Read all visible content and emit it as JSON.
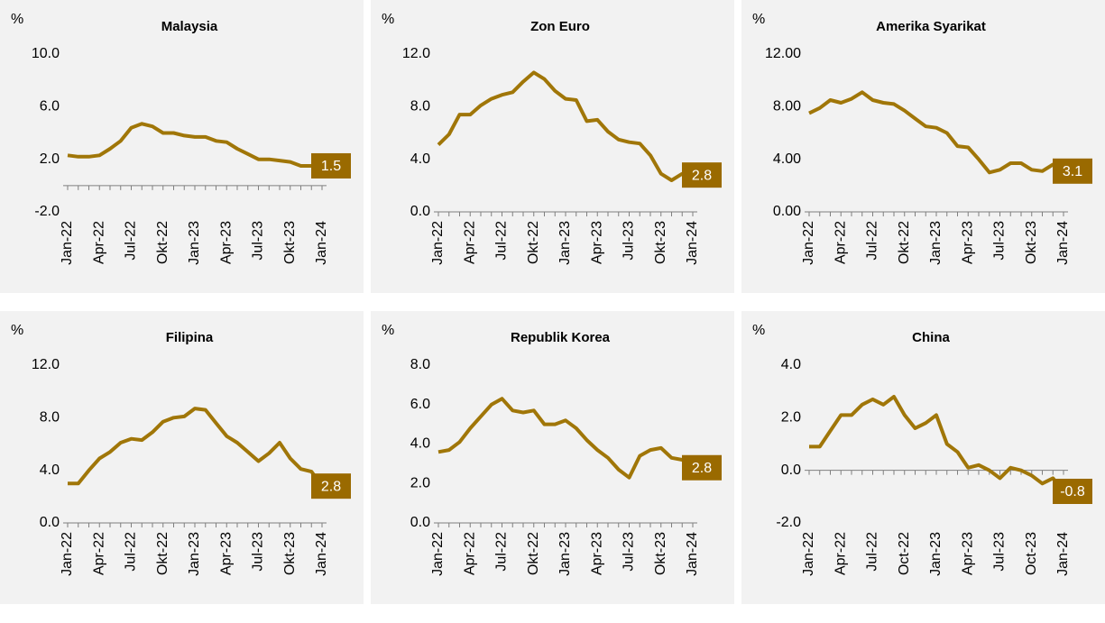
{
  "chart_data": [
    {
      "type": "line",
      "title": "Malaysia",
      "y_label": "%",
      "color": "#a07608",
      "label_color": "#9a6a00",
      "categories": [
        "Jan-22",
        null,
        null,
        "Apr-22",
        null,
        null,
        "Jul-22",
        null,
        null,
        "Okt-22",
        null,
        null,
        "Jan-23",
        null,
        null,
        "Apr-23",
        null,
        null,
        "Jul-23",
        null,
        null,
        "Okt-23",
        null,
        null,
        "Jan-24"
      ],
      "values": [
        2.3,
        2.2,
        2.2,
        2.3,
        2.8,
        3.4,
        4.4,
        4.7,
        4.5,
        4.0,
        4.0,
        3.8,
        3.7,
        3.7,
        3.4,
        3.3,
        2.8,
        2.4,
        2.0,
        2.0,
        1.9,
        1.8,
        1.5,
        1.5,
        1.5
      ],
      "ylim": [
        -2,
        10
      ],
      "yticks": [
        {
          "value": -2,
          "label": "-2.0"
        },
        {
          "value": 2,
          "label": "2.0"
        },
        {
          "value": 6,
          "label": "6.0"
        },
        {
          "value": 10,
          "label": "10.0"
        }
      ]
    },
    {
      "type": "line",
      "title": "Zon Euro",
      "y_label": "%",
      "color": "#a07608",
      "label_color": "#9a6a00",
      "categories": [
        "Jan-22",
        null,
        null,
        "Apr-22",
        null,
        null,
        "Jul-22",
        null,
        null,
        "Okt-22",
        null,
        null,
        "Jan-23",
        null,
        null,
        "Apr-23",
        null,
        null,
        "Jul-23",
        null,
        null,
        "Okt-23",
        null,
        null,
        "Jan-24"
      ],
      "values": [
        5.1,
        5.9,
        7.4,
        7.4,
        8.1,
        8.6,
        8.9,
        9.1,
        9.9,
        10.6,
        10.1,
        9.2,
        8.6,
        8.5,
        6.9,
        7.0,
        6.1,
        5.5,
        5.3,
        5.2,
        4.3,
        2.9,
        2.4,
        2.9,
        2.8
      ],
      "ylim": [
        0,
        12
      ],
      "yticks": [
        {
          "value": 0,
          "label": "0.0"
        },
        {
          "value": 4,
          "label": "4.0"
        },
        {
          "value": 8,
          "label": "8.0"
        },
        {
          "value": 12,
          "label": "12.0"
        }
      ]
    },
    {
      "type": "line",
      "title": "Amerika Syarikat",
      "y_label": "%",
      "color": "#a07608",
      "label_color": "#9a6a00",
      "categories": [
        "Jan-22",
        null,
        null,
        "Apr-22",
        null,
        null,
        "Jul-22",
        null,
        null,
        "Okt-22",
        null,
        null,
        "Jan-23",
        null,
        null,
        "Apr-23",
        null,
        null,
        "Jul-23",
        null,
        null,
        "Okt-23",
        null,
        null,
        "Jan-24"
      ],
      "values": [
        7.5,
        7.9,
        8.5,
        8.3,
        8.6,
        9.1,
        8.5,
        8.3,
        8.2,
        7.7,
        7.1,
        6.5,
        6.4,
        6.0,
        5.0,
        4.9,
        4.0,
        3.0,
        3.2,
        3.7,
        3.7,
        3.2,
        3.1,
        3.6,
        3.1
      ],
      "ylim": [
        0,
        12
      ],
      "yticks": [
        {
          "value": 0,
          "label": "0.00"
        },
        {
          "value": 4,
          "label": "4.00"
        },
        {
          "value": 8,
          "label": "8.00"
        },
        {
          "value": 12,
          "label": "12.00"
        }
      ]
    },
    {
      "type": "line",
      "title": "Filipina",
      "y_label": "%",
      "color": "#a07608",
      "label_color": "#9a6a00",
      "categories": [
        "Jan-22",
        null,
        null,
        "Apr-22",
        null,
        null,
        "Jul-22",
        null,
        null,
        "Okt-22",
        null,
        null,
        "Jan-23",
        null,
        null,
        "Apr-23",
        null,
        null,
        "Jul-23",
        null,
        null,
        "Okt-23",
        null,
        null,
        "Jan-24"
      ],
      "values": [
        3.0,
        3.0,
        4.0,
        4.9,
        5.4,
        6.1,
        6.4,
        6.3,
        6.9,
        7.7,
        8.0,
        8.1,
        8.7,
        8.6,
        7.6,
        6.6,
        6.1,
        5.4,
        4.7,
        5.3,
        6.1,
        4.9,
        4.1,
        3.9,
        2.8
      ],
      "ylim": [
        0,
        12
      ],
      "yticks": [
        {
          "value": 0,
          "label": "0.0"
        },
        {
          "value": 4,
          "label": "4.0"
        },
        {
          "value": 8,
          "label": "8.0"
        },
        {
          "value": 12,
          "label": "12.0"
        }
      ]
    },
    {
      "type": "line",
      "title": "Republik Korea",
      "y_label": "%",
      "color": "#a07608",
      "label_color": "#9a6a00",
      "categories": [
        "Jan-22",
        null,
        null,
        "Apr-22",
        null,
        null,
        "Jul-22",
        null,
        null,
        "Okt-22",
        null,
        null,
        "Jan-23",
        null,
        null,
        "Apr-23",
        null,
        null,
        "Jul-23",
        null,
        null,
        "Okt-23",
        null,
        null,
        "Jan-24"
      ],
      "values": [
        3.6,
        3.7,
        4.1,
        4.8,
        5.4,
        6.0,
        6.3,
        5.7,
        5.6,
        5.7,
        5.0,
        5.0,
        5.2,
        4.8,
        4.2,
        3.7,
        3.3,
        2.7,
        2.3,
        3.4,
        3.7,
        3.8,
        3.3,
        3.2,
        2.8
      ],
      "ylim": [
        0,
        8
      ],
      "yticks": [
        {
          "value": 0,
          "label": "0.0"
        },
        {
          "value": 2,
          "label": "2.0"
        },
        {
          "value": 4,
          "label": "4.0"
        },
        {
          "value": 6,
          "label": "6.0"
        },
        {
          "value": 8,
          "label": "8.0"
        }
      ]
    },
    {
      "type": "line",
      "title": "China",
      "y_label": "%",
      "color": "#a07608",
      "label_color": "#9a6a00",
      "categories": [
        "Jan-22",
        null,
        null,
        "Apr-22",
        null,
        null,
        "Jul-22",
        null,
        null,
        "Oct-22",
        null,
        null,
        "Jan-23",
        null,
        null,
        "Apr-23",
        null,
        null,
        "Jul-23",
        null,
        null,
        "Oct-23",
        null,
        null,
        "Jan-24"
      ],
      "values": [
        0.9,
        0.9,
        1.5,
        2.1,
        2.1,
        2.5,
        2.7,
        2.5,
        2.8,
        2.1,
        1.6,
        1.8,
        2.1,
        1.0,
        0.7,
        0.1,
        0.2,
        0.0,
        -0.3,
        0.1,
        0.0,
        -0.2,
        -0.5,
        -0.3,
        -0.8
      ],
      "ylim": [
        -2,
        4
      ],
      "yticks": [
        {
          "value": -2,
          "label": "-2.0"
        },
        {
          "value": 0,
          "label": "0.0"
        },
        {
          "value": 2,
          "label": "2.0"
        },
        {
          "value": 4,
          "label": "4.0"
        }
      ]
    }
  ]
}
